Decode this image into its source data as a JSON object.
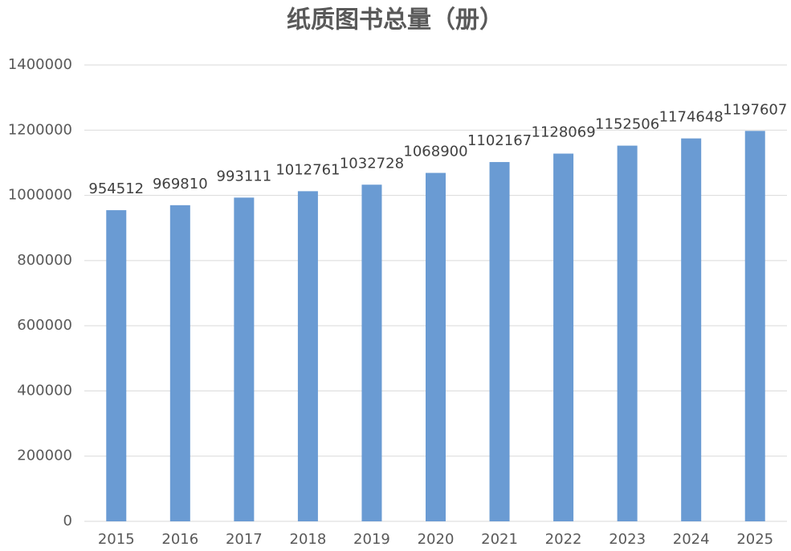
{
  "chart_data": {
    "type": "bar",
    "title": "纸质图书总量（册）",
    "categories": [
      "2015",
      "2016",
      "2017",
      "2018",
      "2019",
      "2020",
      "2021",
      "2022",
      "2023",
      "2024",
      "2025"
    ],
    "values": [
      954512,
      969810,
      993111,
      1012761,
      1032728,
      1068900,
      1102167,
      1128069,
      1152506,
      1174648,
      1197607
    ],
    "color": "#6a9bd3",
    "ylim": [
      0,
      1400000
    ],
    "yticks": [
      0,
      200000,
      400000,
      600000,
      800000,
      1000000,
      1200000,
      1400000
    ],
    "grid": true
  }
}
